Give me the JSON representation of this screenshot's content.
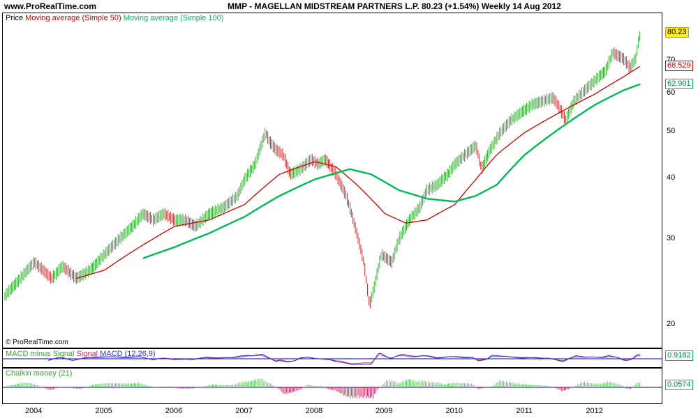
{
  "header": {
    "site": "www.ProRealTime.com",
    "title": "MMP - MAGELLAN MIDSTREAM PARTNERS L.P.    80.23 (+1.54%)    Weekly  14 Aug 2012"
  },
  "main": {
    "legend_price": "Price",
    "legend_ma50": "Moving average (Simple 50)",
    "legend_ma100": "Moving average (Simple 100)",
    "copyright": "© ProRealTime.com"
  },
  "macd": {
    "legend_hist": "MACD minus Signal",
    "legend_signal": "Signal",
    "legend_macd": "MACD (12,26,9)",
    "last": "0.9182"
  },
  "chaikin": {
    "legend": "Chaikin money (21)",
    "last": "0.0574"
  },
  "colors": {
    "price_up": "#33aa33",
    "price_down": "#cc3333",
    "ma50": "#cc0000",
    "ma100": "#00bb55",
    "macd": "#3333cc",
    "signal": "#cc3366",
    "histogram": "#66cc66",
    "zero_line": "#0000aa",
    "last_price_bg": "#ffee00"
  },
  "chart_data": {
    "type": "line",
    "scale": "log",
    "ylim": [
      18,
      88
    ],
    "y_ticks": [
      20,
      30,
      40,
      50,
      60,
      70
    ],
    "x_ticks": [
      "2004",
      "2005",
      "2006",
      "2007",
      "2008",
      "2009",
      "2010",
      "2011",
      "2012"
    ],
    "last_values": {
      "price": 80.23,
      "ma50": 68.529,
      "ma100": 62.901
    },
    "price_series": [
      [
        2003.58,
        23
      ],
      [
        2003.8,
        25
      ],
      [
        2004.0,
        27
      ],
      [
        2004.25,
        25
      ],
      [
        2004.4,
        26.5
      ],
      [
        2004.6,
        25
      ],
      [
        2004.8,
        26
      ],
      [
        2005.0,
        28
      ],
      [
        2005.2,
        30
      ],
      [
        2005.4,
        32
      ],
      [
        2005.55,
        34
      ],
      [
        2005.7,
        33
      ],
      [
        2005.85,
        34
      ],
      [
        2006.0,
        33
      ],
      [
        2006.15,
        33
      ],
      [
        2006.3,
        32
      ],
      [
        2006.5,
        34
      ],
      [
        2006.7,
        35
      ],
      [
        2006.9,
        37
      ],
      [
        2007.0,
        40
      ],
      [
        2007.15,
        43
      ],
      [
        2007.3,
        50
      ],
      [
        2007.35,
        48
      ],
      [
        2007.45,
        46
      ],
      [
        2007.55,
        45
      ],
      [
        2007.65,
        41
      ],
      [
        2007.8,
        42
      ],
      [
        2007.95,
        44
      ],
      [
        2008.05,
        43
      ],
      [
        2008.15,
        44
      ],
      [
        2008.3,
        41
      ],
      [
        2008.45,
        37
      ],
      [
        2008.55,
        33
      ],
      [
        2008.7,
        27
      ],
      [
        2008.78,
        22
      ],
      [
        2008.85,
        24
      ],
      [
        2008.95,
        28
      ],
      [
        2009.1,
        27
      ],
      [
        2009.2,
        30
      ],
      [
        2009.35,
        33
      ],
      [
        2009.5,
        35
      ],
      [
        2009.6,
        38
      ],
      [
        2009.75,
        39
      ],
      [
        2009.9,
        41
      ],
      [
        2010.0,
        43
      ],
      [
        2010.15,
        45
      ],
      [
        2010.3,
        47
      ],
      [
        2010.38,
        42
      ],
      [
        2010.5,
        46
      ],
      [
        2010.65,
        50
      ],
      [
        2010.8,
        53
      ],
      [
        2010.95,
        55
      ],
      [
        2011.1,
        57
      ],
      [
        2011.25,
        58
      ],
      [
        2011.4,
        59
      ],
      [
        2011.5,
        56
      ],
      [
        2011.58,
        53
      ],
      [
        2011.7,
        58
      ],
      [
        2011.85,
        61
      ],
      [
        2012.0,
        64
      ],
      [
        2012.15,
        67
      ],
      [
        2012.25,
        73
      ],
      [
        2012.4,
        71
      ],
      [
        2012.5,
        68
      ],
      [
        2012.58,
        71
      ],
      [
        2012.62,
        77
      ],
      [
        2012.65,
        80.23
      ]
    ],
    "ma50_series": [
      [
        2004.6,
        25
      ],
      [
        2005.0,
        26
      ],
      [
        2005.5,
        29
      ],
      [
        2006.0,
        32
      ],
      [
        2006.5,
        33
      ],
      [
        2007.0,
        35.5
      ],
      [
        2007.5,
        41
      ],
      [
        2008.0,
        43.5
      ],
      [
        2008.3,
        42.5
      ],
      [
        2008.6,
        39
      ],
      [
        2009.0,
        34
      ],
      [
        2009.3,
        32.5
      ],
      [
        2009.6,
        33
      ],
      [
        2010.0,
        35.5
      ],
      [
        2010.3,
        40
      ],
      [
        2010.6,
        45
      ],
      [
        2011.0,
        50
      ],
      [
        2011.5,
        55
      ],
      [
        2012.0,
        60
      ],
      [
        2012.4,
        65
      ],
      [
        2012.65,
        68.529
      ]
    ],
    "ma100_series": [
      [
        2005.55,
        27.5
      ],
      [
        2006.0,
        29
      ],
      [
        2006.5,
        31
      ],
      [
        2007.0,
        33.5
      ],
      [
        2007.5,
        37
      ],
      [
        2008.0,
        40
      ],
      [
        2008.5,
        42
      ],
      [
        2008.8,
        41
      ],
      [
        2009.2,
        38
      ],
      [
        2009.6,
        36.5
      ],
      [
        2010.0,
        36
      ],
      [
        2010.3,
        37
      ],
      [
        2010.6,
        39
      ],
      [
        2011.0,
        45
      ],
      [
        2011.5,
        51
      ],
      [
        2012.0,
        57
      ],
      [
        2012.4,
        61
      ],
      [
        2012.65,
        62.901
      ]
    ]
  }
}
